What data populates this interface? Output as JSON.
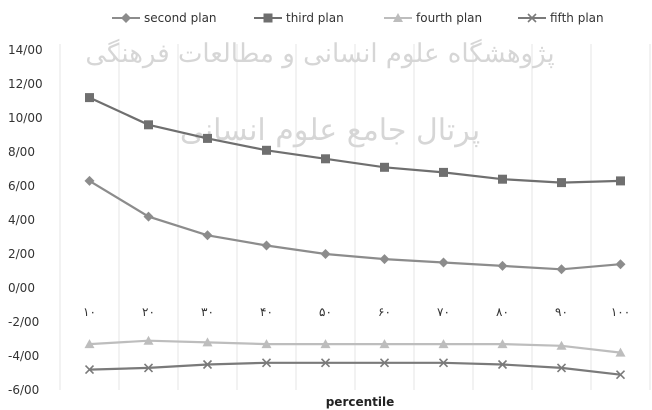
{
  "chart_data": {
    "type": "line",
    "title": "",
    "xlabel": "percentile",
    "ylabel": "",
    "categories": [
      "۱۰",
      "۲۰",
      "۳۰",
      "۴۰",
      "۵۰",
      "۶۰",
      "۷۰",
      "۸۰",
      "۹۰",
      "۱۰۰"
    ],
    "yticks": [
      "-6/00",
      "-4/00",
      "-2/00",
      "0/00",
      "2/00",
      "4/00",
      "6/00",
      "8/00",
      "10/00",
      "12/00",
      "14/00"
    ],
    "ylim": [
      -6,
      14
    ],
    "legend_position": "top",
    "grid": "vertical-gridlines",
    "series": [
      {
        "name": "second plan",
        "marker": "diamond",
        "color": "#8c8c8c",
        "values": [
          6.3,
          4.2,
          3.1,
          2.5,
          2.0,
          1.7,
          1.5,
          1.3,
          1.1,
          1.4
        ]
      },
      {
        "name": "third plan",
        "marker": "square",
        "color": "#6f6f6f",
        "values": [
          11.2,
          9.6,
          8.8,
          8.1,
          7.6,
          7.1,
          6.8,
          6.4,
          6.2,
          6.3
        ]
      },
      {
        "name": "fourth plan",
        "marker": "triangle",
        "color": "#bdbdbd",
        "values": [
          -3.3,
          -3.1,
          -3.2,
          -3.3,
          -3.3,
          -3.3,
          -3.3,
          -3.3,
          -3.4,
          -3.8
        ]
      },
      {
        "name": "fifth plan",
        "marker": "x",
        "color": "#7a7a7a",
        "values": [
          -4.8,
          -4.7,
          -4.5,
          -4.4,
          -4.4,
          -4.4,
          -4.4,
          -4.5,
          -4.7,
          -5.1
        ]
      }
    ],
    "watermark": {
      "line1": "پژوهشگاه علوم انسانی و مطالعات فرهنگی",
      "line2": "پرتال جامع علوم انسانی"
    }
  }
}
